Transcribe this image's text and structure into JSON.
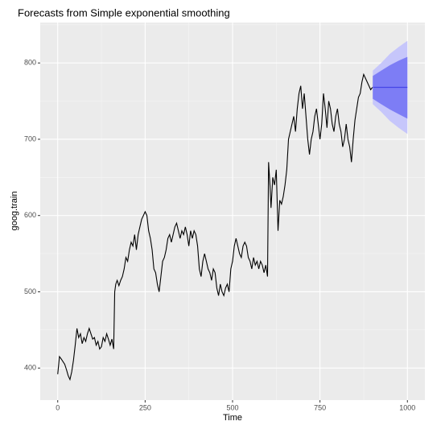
{
  "chart_data": {
    "type": "line",
    "title": "Forecasts from Simple exponential smoothing",
    "x_label": "Time",
    "y_label": "goog.train",
    "xlim": [
      -50,
      1050
    ],
    "ylim": [
      358,
      853
    ],
    "xticks": [
      0,
      250,
      500,
      750,
      1000
    ],
    "yticks": [
      400,
      500,
      600,
      700,
      800
    ],
    "grid": true,
    "color": "#000000",
    "x": [
      0,
      5,
      10,
      20,
      25,
      30,
      35,
      40,
      45,
      50,
      55,
      60,
      65,
      70,
      75,
      80,
      85,
      90,
      95,
      100,
      105,
      110,
      115,
      120,
      125,
      130,
      135,
      140,
      145,
      150,
      155,
      160,
      163,
      166,
      170,
      175,
      180,
      185,
      190,
      195,
      200,
      205,
      210,
      215,
      220,
      225,
      230,
      235,
      240,
      245,
      250,
      255,
      260,
      265,
      270,
      275,
      280,
      285,
      290,
      295,
      300,
      305,
      310,
      315,
      320,
      325,
      330,
      335,
      340,
      345,
      350,
      355,
      360,
      365,
      370,
      375,
      380,
      385,
      390,
      395,
      400,
      405,
      410,
      415,
      420,
      425,
      430,
      435,
      440,
      445,
      450,
      455,
      460,
      465,
      470,
      475,
      480,
      485,
      490,
      495,
      500,
      505,
      510,
      515,
      520,
      525,
      530,
      535,
      540,
      545,
      550,
      555,
      560,
      565,
      570,
      575,
      580,
      585,
      590,
      595,
      600,
      603,
      607,
      610,
      615,
      620,
      625,
      630,
      635,
      640,
      645,
      650,
      655,
      660,
      665,
      670,
      675,
      680,
      685,
      690,
      695,
      700,
      705,
      710,
      715,
      720,
      725,
      730,
      735,
      740,
      745,
      750,
      755,
      760,
      765,
      770,
      775,
      780,
      785,
      790,
      795,
      800,
      805,
      810,
      815,
      820,
      825,
      830,
      835,
      840,
      845,
      850,
      855,
      860,
      865,
      870,
      875,
      880,
      885,
      890,
      895,
      900
    ],
    "values": [
      392,
      415,
      412,
      405,
      398,
      390,
      385,
      395,
      410,
      430,
      452,
      440,
      445,
      432,
      440,
      435,
      445,
      452,
      445,
      438,
      440,
      430,
      435,
      425,
      428,
      440,
      435,
      445,
      438,
      430,
      438,
      425,
      500,
      510,
      515,
      508,
      515,
      520,
      530,
      545,
      540,
      555,
      565,
      560,
      575,
      555,
      575,
      585,
      595,
      600,
      605,
      600,
      580,
      570,
      555,
      530,
      525,
      510,
      500,
      520,
      540,
      545,
      555,
      570,
      575,
      565,
      575,
      585,
      590,
      580,
      570,
      580,
      575,
      585,
      575,
      560,
      580,
      570,
      580,
      575,
      560,
      530,
      520,
      540,
      550,
      540,
      530,
      525,
      515,
      530,
      525,
      505,
      495,
      510,
      500,
      495,
      505,
      510,
      500,
      530,
      540,
      560,
      570,
      560,
      550,
      545,
      560,
      565,
      560,
      545,
      540,
      530,
      545,
      535,
      540,
      530,
      540,
      535,
      525,
      535,
      520,
      670,
      640,
      610,
      650,
      640,
      660,
      580,
      620,
      615,
      625,
      640,
      660,
      700,
      710,
      720,
      730,
      710,
      740,
      760,
      770,
      740,
      760,
      730,
      700,
      680,
      700,
      710,
      730,
      740,
      720,
      700,
      720,
      760,
      740,
      715,
      750,
      740,
      720,
      710,
      730,
      740,
      720,
      710,
      690,
      700,
      720,
      700,
      690,
      670,
      700,
      725,
      740,
      755,
      760,
      775,
      785,
      780,
      775,
      770,
      765,
      768
    ],
    "forecast": {
      "x": [
        901,
        925,
        950,
        975,
        1000
      ],
      "mean": [
        768,
        768,
        768,
        768,
        768
      ],
      "lo80": [
        753,
        746,
        739,
        733,
        727
      ],
      "hi80": [
        783,
        790,
        797,
        803,
        808
      ],
      "lo95": [
        746,
        736,
        724,
        715,
        707
      ],
      "hi95": [
        790,
        800,
        812,
        821,
        829
      ],
      "color": "#4545e8",
      "color80": "#7d7df5",
      "color95": "#c6c6fb"
    }
  }
}
